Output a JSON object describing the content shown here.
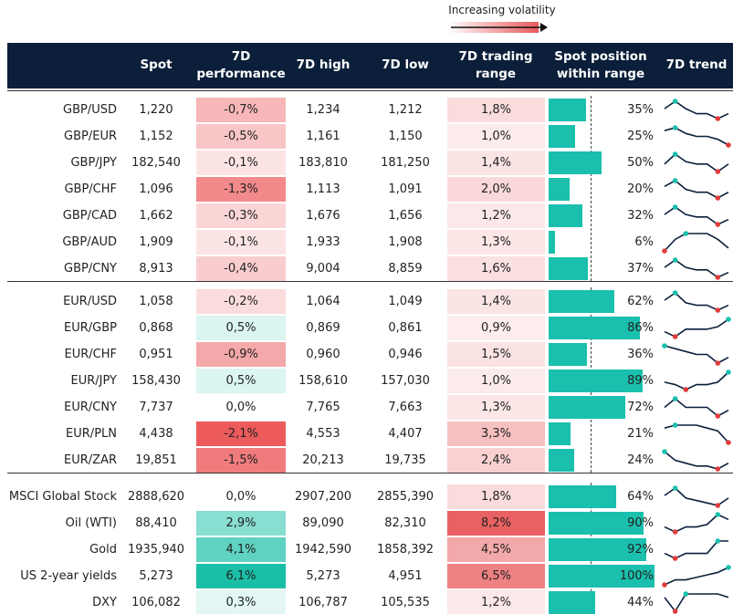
{
  "header": {
    "legend": "Increasing volatility",
    "columns": [
      "Spot",
      "7D\nperformance",
      "7D high",
      "7D low",
      "7D trading\nrange",
      "Spot position\nwithin range",
      "7D trend"
    ]
  },
  "groups": [
    {
      "rows": [
        {
          "name": "GBP/USD",
          "spot": "1,220",
          "perf": {
            "value": -0.7,
            "label": "-0,7%"
          },
          "high": "1,234",
          "low": "1,212",
          "range": {
            "value": 1.8,
            "label": "1,8%"
          },
          "position": {
            "value": 35,
            "label": "35%"
          },
          "trend": [
            5,
            8,
            5,
            3,
            3,
            1,
            3
          ]
        },
        {
          "name": "GBP/EUR",
          "spot": "1,152",
          "perf": {
            "value": -0.5,
            "label": "-0,5%"
          },
          "high": "1,161",
          "low": "1,150",
          "range": {
            "value": 1.0,
            "label": "1,0%"
          },
          "position": {
            "value": 25,
            "label": "25%"
          },
          "trend": [
            6,
            7,
            5,
            4,
            4,
            3,
            1
          ]
        },
        {
          "name": "GBP/JPY",
          "spot": "182,540",
          "perf": {
            "value": -0.1,
            "label": "-0,1%"
          },
          "high": "183,810",
          "low": "181,250",
          "range": {
            "value": 1.4,
            "label": "1,4%"
          },
          "position": {
            "value": 50,
            "label": "50%"
          },
          "trend": [
            4,
            8,
            5,
            4,
            4,
            1,
            4
          ]
        },
        {
          "name": "GBP/CHF",
          "spot": "1,096",
          "perf": {
            "value": -1.3,
            "label": "-1,3%"
          },
          "high": "1,113",
          "low": "1,091",
          "range": {
            "value": 2.0,
            "label": "2,0%"
          },
          "position": {
            "value": 20,
            "label": "20%"
          },
          "trend": [
            5,
            7,
            4,
            3,
            3,
            1,
            3
          ]
        },
        {
          "name": "GBP/CAD",
          "spot": "1,662",
          "perf": {
            "value": -0.3,
            "label": "-0,3%"
          },
          "high": "1,676",
          "low": "1,656",
          "range": {
            "value": 1.2,
            "label": "1,2%"
          },
          "position": {
            "value": 32,
            "label": "32%"
          },
          "trend": [
            5,
            8,
            5,
            4,
            4,
            1,
            3
          ]
        },
        {
          "name": "GBP/AUD",
          "spot": "1,909",
          "perf": {
            "value": -0.1,
            "label": "-0,1%"
          },
          "high": "1,933",
          "low": "1,908",
          "range": {
            "value": 1.3,
            "label": "1,3%"
          },
          "position": {
            "value": 6,
            "label": "6%"
          },
          "trend": [
            1,
            5,
            7,
            7,
            7,
            5,
            2
          ]
        },
        {
          "name": "GBP/CNY",
          "spot": "8,913",
          "perf": {
            "value": -0.4,
            "label": "-0,4%"
          },
          "high": "9,004",
          "low": "8,859",
          "range": {
            "value": 1.6,
            "label": "1,6%"
          },
          "position": {
            "value": 37,
            "label": "37%"
          },
          "trend": [
            5,
            8,
            5,
            4,
            4,
            1,
            3
          ]
        }
      ]
    },
    {
      "rows": [
        {
          "name": "EUR/USD",
          "spot": "1,058",
          "perf": {
            "value": -0.2,
            "label": "-0,2%"
          },
          "high": "1,064",
          "low": "1,049",
          "range": {
            "value": 1.4,
            "label": "1,4%"
          },
          "position": {
            "value": 62,
            "label": "62%"
          },
          "trend": [
            5,
            8,
            4,
            3,
            3,
            1,
            3
          ]
        },
        {
          "name": "EUR/GBP",
          "spot": "0,868",
          "perf": {
            "value": 0.5,
            "label": "0,5%"
          },
          "high": "0,869",
          "low": "0,861",
          "range": {
            "value": 0.9,
            "label": "0,9%"
          },
          "position": {
            "value": 86,
            "label": "86%"
          },
          "trend": [
            3,
            1,
            4,
            4,
            4,
            5,
            8
          ]
        },
        {
          "name": "EUR/CHF",
          "spot": "0,951",
          "perf": {
            "value": -0.9,
            "label": "-0,9%"
          },
          "high": "0,960",
          "low": "0,946",
          "range": {
            "value": 1.5,
            "label": "1,5%"
          },
          "position": {
            "value": 36,
            "label": "36%"
          },
          "trend": [
            7,
            6,
            5,
            4,
            4,
            1,
            3
          ]
        },
        {
          "name": "EUR/JPY",
          "spot": "158,430",
          "perf": {
            "value": 0.5,
            "label": "0,5%"
          },
          "high": "158,610",
          "low": "157,030",
          "range": {
            "value": 1.0,
            "label": "1,0%"
          },
          "position": {
            "value": 89,
            "label": "89%"
          },
          "trend": [
            4,
            3,
            1,
            3,
            3,
            4,
            8
          ]
        },
        {
          "name": "EUR/CNY",
          "spot": "7,737",
          "perf": {
            "value": 0.0,
            "label": "0,0%"
          },
          "high": "7,765",
          "low": "7,663",
          "range": {
            "value": 1.3,
            "label": "1,3%"
          },
          "position": {
            "value": 72,
            "label": "72%"
          },
          "trend": [
            4,
            7,
            4,
            4,
            4,
            1,
            3
          ]
        },
        {
          "name": "EUR/PLN",
          "spot": "4,438",
          "perf": {
            "value": -2.1,
            "label": "-2,1%"
          },
          "high": "4,553",
          "low": "4,407",
          "range": {
            "value": 3.3,
            "label": "3,3%"
          },
          "position": {
            "value": 21,
            "label": "21%"
          },
          "trend": [
            6,
            7,
            7,
            7,
            6,
            5,
            1
          ]
        },
        {
          "name": "EUR/ZAR",
          "spot": "19,851",
          "perf": {
            "value": -1.5,
            "label": "-1,5%"
          },
          "high": "20,213",
          "low": "19,735",
          "range": {
            "value": 2.4,
            "label": "2,4%"
          },
          "position": {
            "value": 24,
            "label": "24%"
          },
          "trend": [
            7,
            4,
            3,
            2,
            2,
            1,
            3
          ]
        }
      ]
    },
    {
      "rows": [
        {
          "name": "MSCI Global Stock",
          "spot": "2888,620",
          "perf": {
            "value": 0.0,
            "label": "0,0%"
          },
          "high": "2907,200",
          "low": "2855,390",
          "range": {
            "value": 1.8,
            "label": "1,8%"
          },
          "position": {
            "value": 64,
            "label": "64%"
          },
          "trend": [
            5,
            8,
            4,
            3,
            2,
            1,
            4
          ]
        },
        {
          "name": "Oil (WTI)",
          "spot": "88,410",
          "perf": {
            "value": 2.9,
            "label": "2,9%"
          },
          "high": "89,090",
          "low": "82,310",
          "range": {
            "value": 8.2,
            "label": "8,2%"
          },
          "position": {
            "value": 90,
            "label": "90%"
          },
          "trend": [
            3,
            1,
            3,
            3,
            4,
            8,
            6
          ]
        },
        {
          "name": "Gold",
          "spot": "1935,940",
          "perf": {
            "value": 4.1,
            "label": "4,1%"
          },
          "high": "1942,590",
          "low": "1858,392",
          "range": {
            "value": 4.5,
            "label": "4,5%"
          },
          "position": {
            "value": 92,
            "label": "92%"
          },
          "trend": [
            3,
            1,
            3,
            3,
            3,
            8,
            8
          ]
        },
        {
          "name": "US 2-year yields",
          "spot": "5,273",
          "perf": {
            "value": 6.1,
            "label": "6,1%"
          },
          "high": "5,273",
          "low": "4,951",
          "range": {
            "value": 6.5,
            "label": "6,5%"
          },
          "position": {
            "value": 100,
            "label": "100%"
          },
          "trend": [
            1,
            3,
            3,
            4,
            5,
            6,
            8
          ]
        },
        {
          "name": "DXY",
          "spot": "106,082",
          "perf": {
            "value": 0.3,
            "label": "0,3%"
          },
          "high": "106,787",
          "low": "105,535",
          "range": {
            "value": 1.2,
            "label": "1,2%"
          },
          "position": {
            "value": 44,
            "label": "44%"
          },
          "trend": [
            5,
            1,
            6,
            6,
            6,
            6,
            5
          ]
        }
      ]
    }
  ]
}
